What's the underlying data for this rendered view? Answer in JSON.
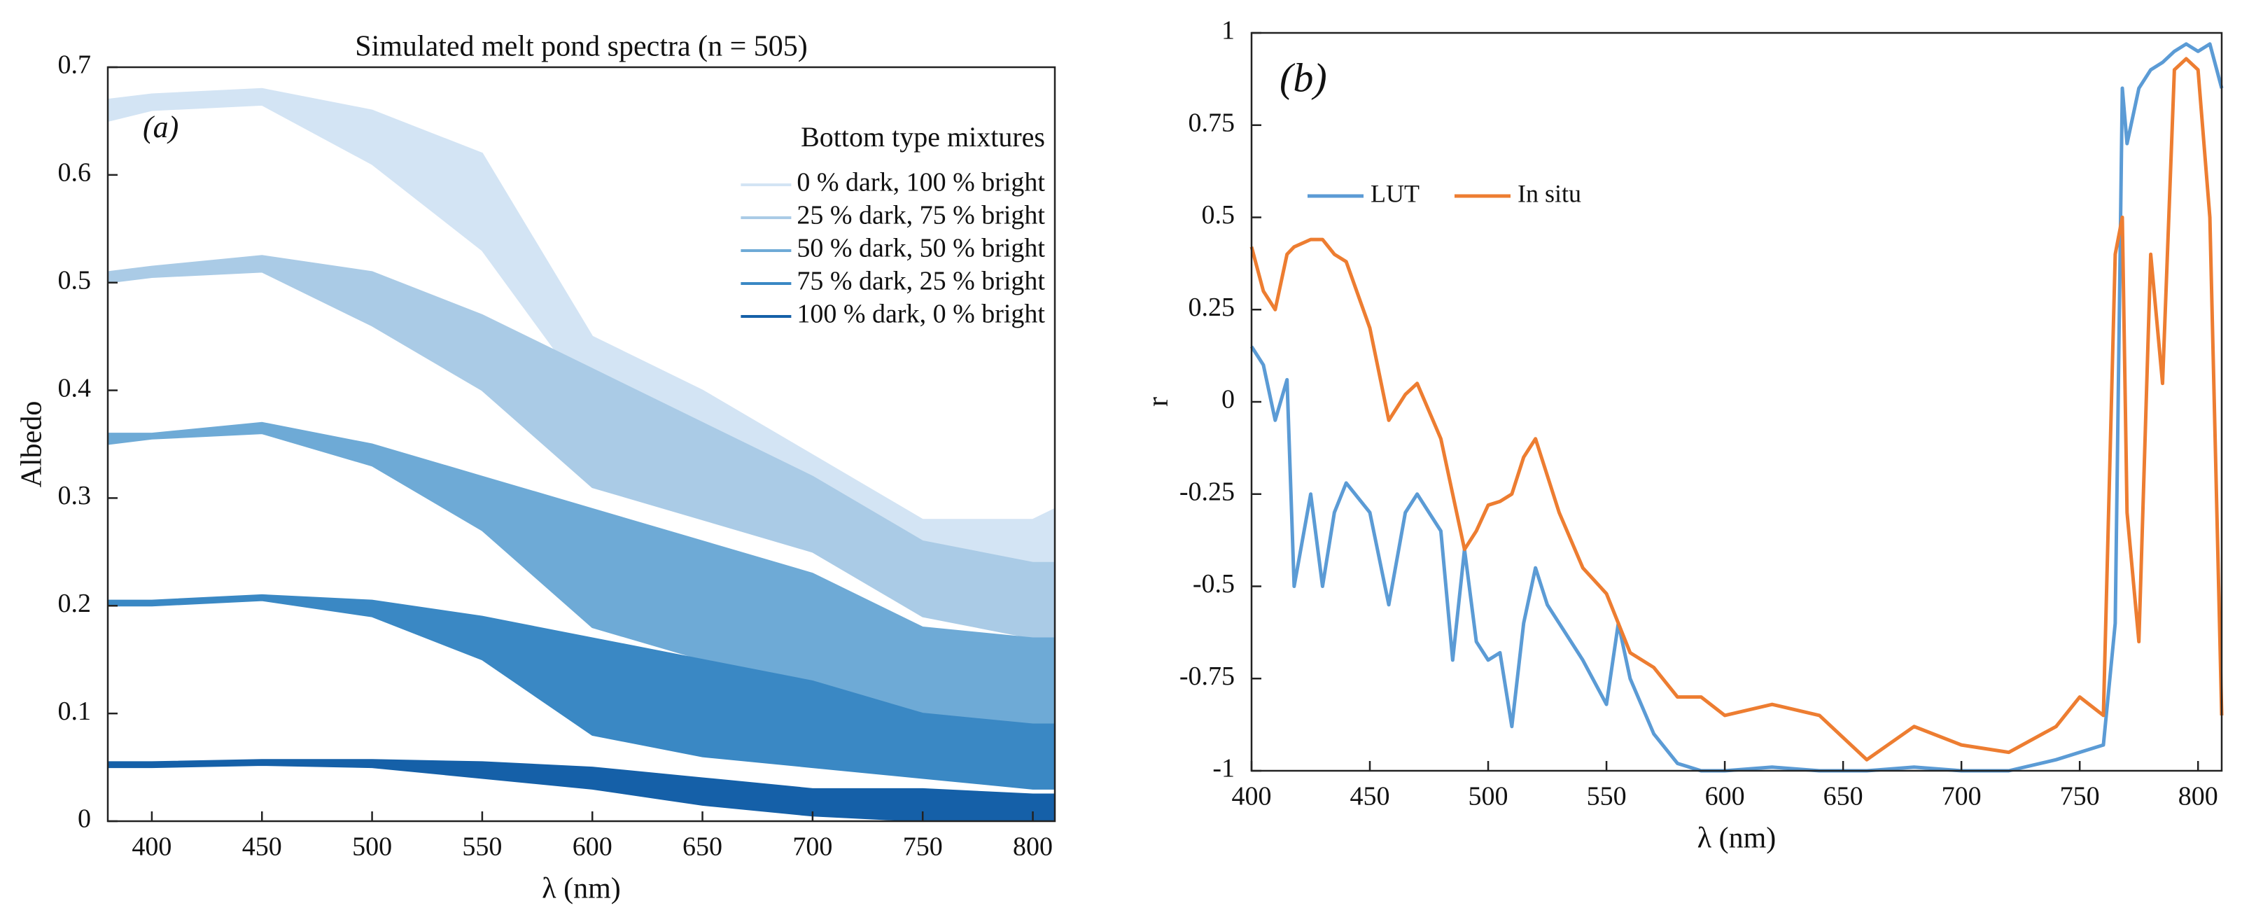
{
  "chart_data": [
    {
      "type": "band",
      "title": "Simulated melt pond spectra (n = 505)",
      "panel_label": "(a)",
      "xlabel": "λ (nm)",
      "ylabel": "Albedo",
      "xlim": [
        380,
        810
      ],
      "xticks": [
        400,
        450,
        500,
        550,
        600,
        650,
        700,
        750,
        800
      ],
      "ylim": [
        0,
        0.7
      ],
      "yticks": [
        0,
        0.1,
        0.2,
        0.3,
        0.4,
        0.5,
        0.6,
        0.7
      ],
      "legend_title": "Bottom type mixtures",
      "legend": "upper right",
      "x": [
        380,
        400,
        450,
        500,
        550,
        600,
        650,
        700,
        750,
        800,
        810
      ],
      "series": [
        {
          "name": "0 % dark, 100 % bright",
          "color": "#d3e4f4",
          "upper": [
            0.67,
            0.675,
            0.68,
            0.66,
            0.62,
            0.45,
            0.4,
            0.34,
            0.28,
            0.28,
            0.29
          ],
          "lower": [
            0.65,
            0.66,
            0.665,
            0.61,
            0.53,
            0.39,
            0.34,
            0.29,
            0.24,
            0.23,
            0.23
          ]
        },
        {
          "name": "25 % dark, 75 % bright",
          "color": "#aacbe6",
          "upper": [
            0.51,
            0.515,
            0.525,
            0.51,
            0.47,
            0.42,
            0.37,
            0.32,
            0.26,
            0.24,
            0.24
          ],
          "lower": [
            0.5,
            0.505,
            0.51,
            0.46,
            0.4,
            0.31,
            0.28,
            0.25,
            0.19,
            0.17,
            0.17
          ]
        },
        {
          "name": "50 % dark, 50 % bright",
          "color": "#6eaad6",
          "upper": [
            0.36,
            0.36,
            0.37,
            0.35,
            0.32,
            0.29,
            0.26,
            0.23,
            0.18,
            0.17,
            0.17
          ],
          "lower": [
            0.35,
            0.355,
            0.36,
            0.33,
            0.27,
            0.18,
            0.15,
            0.13,
            0.1,
            0.09,
            0.09
          ]
        },
        {
          "name": "75 % dark, 25 % bright",
          "color": "#3a88c4",
          "upper": [
            0.205,
            0.205,
            0.21,
            0.205,
            0.19,
            0.17,
            0.15,
            0.13,
            0.1,
            0.09,
            0.09
          ],
          "lower": [
            0.2,
            0.2,
            0.205,
            0.19,
            0.15,
            0.08,
            0.06,
            0.05,
            0.04,
            0.03,
            0.03
          ]
        },
        {
          "name": "100 % dark, 0 % bright",
          "color": "#1560a8",
          "upper": [
            0.055,
            0.055,
            0.057,
            0.057,
            0.055,
            0.05,
            0.04,
            0.03,
            0.03,
            0.025,
            0.025
          ],
          "lower": [
            0.05,
            0.05,
            0.052,
            0.05,
            0.04,
            0.03,
            0.015,
            0.005,
            0,
            0,
            0
          ]
        }
      ]
    },
    {
      "type": "line",
      "panel_label": "(b)",
      "xlabel": "λ (nm)",
      "ylabel": "r",
      "xlim": [
        400,
        810
      ],
      "xticks": [
        400,
        450,
        500,
        550,
        600,
        650,
        700,
        750,
        800
      ],
      "ylim": [
        -1,
        1
      ],
      "yticks": [
        -1,
        -0.75,
        -0.5,
        -0.25,
        0,
        0.25,
        0.5,
        0.75,
        1
      ],
      "legend": "upper left",
      "x": [
        400,
        405,
        410,
        415,
        418,
        425,
        430,
        435,
        440,
        450,
        458,
        465,
        470,
        480,
        485,
        490,
        495,
        500,
        505,
        510,
        515,
        520,
        525,
        530,
        540,
        550,
        555,
        560,
        570,
        580,
        590,
        600,
        620,
        640,
        660,
        680,
        700,
        720,
        740,
        750,
        760,
        765,
        768,
        770,
        775,
        780,
        785,
        790,
        795,
        800,
        805,
        810
      ],
      "series": [
        {
          "name": "LUT",
          "color": "#5b9bd5",
          "values": [
            0.15,
            0.1,
            -0.05,
            0.06,
            -0.5,
            -0.25,
            -0.5,
            -0.3,
            -0.22,
            -0.3,
            -0.55,
            -0.3,
            -0.25,
            -0.35,
            -0.7,
            -0.4,
            -0.65,
            -0.7,
            -0.68,
            -0.88,
            -0.6,
            -0.45,
            -0.55,
            -0.6,
            -0.7,
            -0.82,
            -0.6,
            -0.75,
            -0.9,
            -0.98,
            -1,
            -1,
            -0.99,
            -1,
            -1,
            -0.99,
            -1,
            -1,
            -0.97,
            -0.95,
            -0.93,
            -0.6,
            0.85,
            0.7,
            0.85,
            0.9,
            0.92,
            0.95,
            0.97,
            0.95,
            0.97,
            0.85
          ]
        },
        {
          "name": "In situ",
          "color": "#ed7d31",
          "values": [
            0.42,
            0.3,
            0.25,
            0.4,
            0.42,
            0.44,
            0.44,
            0.4,
            0.38,
            0.2,
            -0.05,
            0.02,
            0.05,
            -0.1,
            -0.25,
            -0.4,
            -0.35,
            -0.28,
            -0.27,
            -0.25,
            -0.15,
            -0.1,
            -0.2,
            -0.3,
            -0.45,
            -0.52,
            -0.6,
            -0.68,
            -0.72,
            -0.8,
            -0.8,
            -0.85,
            -0.82,
            -0.85,
            -0.97,
            -0.88,
            -0.93,
            -0.95,
            -0.88,
            -0.8,
            -0.85,
            0.4,
            0.5,
            -0.3,
            -0.65,
            0.4,
            0.05,
            0.9,
            0.93,
            0.9,
            0.5,
            -0.85
          ]
        }
      ]
    }
  ]
}
